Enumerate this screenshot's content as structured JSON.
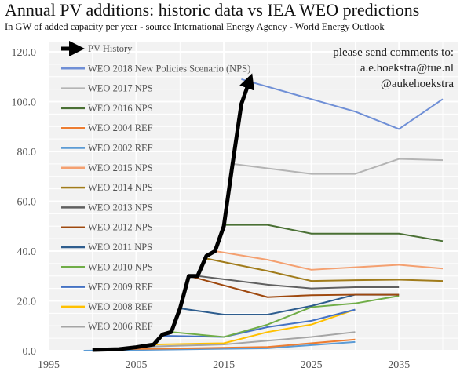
{
  "chart_data": {
    "type": "line",
    "title": "Annual PV additions: historic data vs IEA WEO predictions",
    "subtitle": "In GW of added capacity per year - source International Energy Agency - World Energy Outlook",
    "annotation": [
      "please send comments to:",
      "a.e.hoekstra@tue.nl",
      "@aukehoekstra"
    ],
    "xlabel": "",
    "ylabel": "",
    "xlim": [
      1995,
      2040
    ],
    "ylim": [
      0,
      120
    ],
    "xticks": [
      "1995",
      "2005",
      "2015",
      "2025",
      "2035"
    ],
    "yticks": [
      "0.0",
      "20.0",
      "40.0",
      "60.0",
      "80.0",
      "100.0",
      "120.0"
    ],
    "grid": true,
    "legend_position": "top-left",
    "series": [
      {
        "name": "PV History",
        "color": "#000000",
        "arrow": true,
        "x": [
          2000,
          2003,
          2005,
          2007,
          2008,
          2009,
          2010,
          2011,
          2012,
          2013,
          2014,
          2015,
          2016,
          2017,
          2018
        ],
        "y": [
          0.3,
          0.6,
          1.4,
          2.5,
          6.5,
          7.5,
          17,
          30,
          30,
          38,
          40,
          50,
          75,
          99,
          109
        ]
      },
      {
        "name": "WEO 2018 New Policies Scenario (NPS)",
        "color": "#6f8fd6",
        "x": [
          2017,
          2025,
          2030,
          2035,
          2040
        ],
        "y": [
          109,
          101,
          96,
          89,
          101
        ]
      },
      {
        "name": "WEO 2017 NPS",
        "color": "#b4b4b4",
        "x": [
          2016,
          2025,
          2030,
          2035,
          2040
        ],
        "y": [
          75,
          71,
          71,
          77,
          76.5
        ]
      },
      {
        "name": "WEO 2016 NPS",
        "color": "#4a7034",
        "x": [
          2015,
          2020,
          2025,
          2030,
          2035,
          2040
        ],
        "y": [
          50.5,
          50.5,
          47,
          47,
          47,
          44
        ]
      },
      {
        "name": "WEO 2004 REF",
        "color": "#ed7d31",
        "x": [
          2003,
          2010,
          2020,
          2030
        ],
        "y": [
          0.6,
          0.9,
          1.5,
          4.5
        ]
      },
      {
        "name": "WEO 2002 REF",
        "color": "#5b9bd5",
        "x": [
          1999,
          2010,
          2020,
          2030
        ],
        "y": [
          0,
          0.5,
          1,
          3.5
        ]
      },
      {
        "name": "WEO 2015 NPS",
        "color": "#f4a070",
        "x": [
          2014,
          2020,
          2025,
          2030,
          2035,
          2040
        ],
        "y": [
          40,
          36.5,
          32.5,
          33.5,
          34.5,
          33
        ]
      },
      {
        "name": "WEO 2014 NPS",
        "color": "#a07b1a",
        "x": [
          2013,
          2020,
          2025,
          2030,
          2035,
          2040
        ],
        "y": [
          37,
          32,
          28,
          28.3,
          28.5,
          28
        ]
      },
      {
        "name": "WEO 2013 NPS",
        "color": "#606060",
        "x": [
          2012,
          2020,
          2025,
          2030,
          2035
        ],
        "y": [
          30,
          26.5,
          25,
          25.5,
          25.5
        ]
      },
      {
        "name": "WEO 2012 NPS",
        "color": "#9e480e",
        "x": [
          2011,
          2020,
          2025,
          2030,
          2035
        ],
        "y": [
          30,
          21.5,
          22.3,
          22.5,
          22.5
        ]
      },
      {
        "name": "WEO 2011 NPS",
        "color": "#2e5d8e",
        "x": [
          2010,
          2015,
          2020,
          2025,
          2030,
          2035
        ],
        "y": [
          17,
          14.5,
          14.5,
          18,
          22.5,
          22.5
        ]
      },
      {
        "name": "WEO 2010 NPS",
        "color": "#70ad47",
        "x": [
          2009,
          2015,
          2020,
          2025,
          2030,
          2035
        ],
        "y": [
          7.5,
          5.5,
          10.5,
          17.5,
          19,
          22
        ]
      },
      {
        "name": "WEO 2009 REF",
        "color": "#4472c4",
        "x": [
          2008,
          2015,
          2020,
          2025,
          2030
        ],
        "y": [
          6,
          5.5,
          9.5,
          12,
          16.5
        ]
      },
      {
        "name": "WEO 2008 REF",
        "color": "#ffc000",
        "x": [
          2007,
          2015,
          2020,
          2025,
          2030
        ],
        "y": [
          2.5,
          3,
          7.5,
          10.5,
          16.5
        ]
      },
      {
        "name": "WEO 2006 REF",
        "color": "#a5a5a5",
        "x": [
          2005,
          2015,
          2020,
          2025,
          2030
        ],
        "y": [
          1.5,
          2.5,
          4,
          5.5,
          7.5
        ]
      }
    ]
  }
}
